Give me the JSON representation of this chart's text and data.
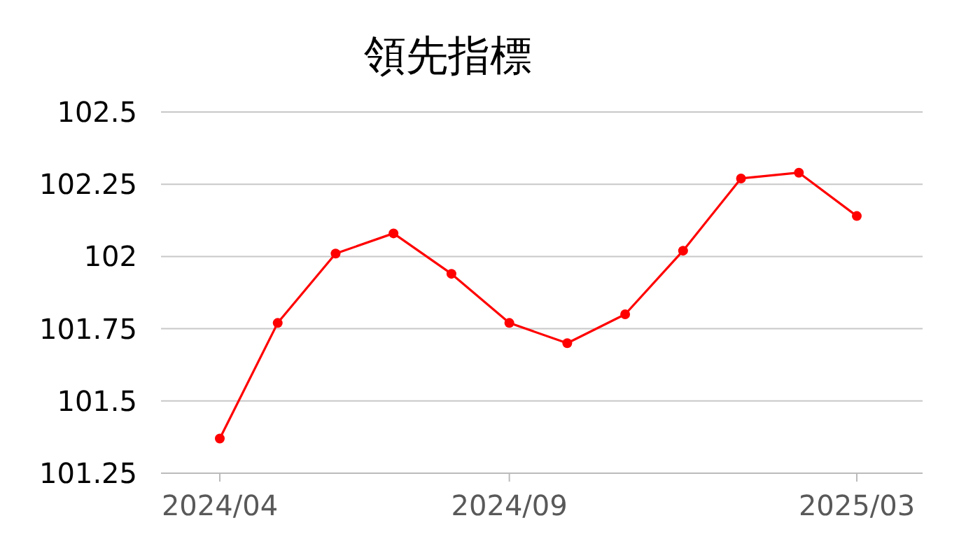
{
  "chart_data": {
    "type": "line",
    "title": "領先指標",
    "categories": [
      "2024/04",
      null,
      null,
      null,
      null,
      "2024/09",
      null,
      null,
      null,
      null,
      null,
      "2025/03"
    ],
    "series": [
      {
        "color": "#ff0000",
        "values": [
          101.37,
          101.77,
          102.01,
          102.08,
          101.94,
          101.77,
          101.7,
          101.8,
          102.02,
          102.27,
          102.29,
          102.14
        ]
      }
    ],
    "ylim": [
      101.25,
      102.5
    ],
    "yticks": [
      101.25,
      101.5,
      101.75,
      102,
      102.25,
      102.5
    ],
    "grid": "y",
    "marker": "circle"
  }
}
